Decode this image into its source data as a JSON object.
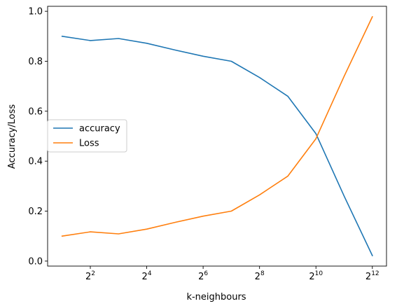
{
  "chart_data": {
    "type": "line",
    "title": "",
    "xlabel": "k-neighbours",
    "ylabel": "Accuracy/Loss",
    "x_scale": "log2",
    "x": [
      2,
      4,
      8,
      16,
      32,
      64,
      128,
      256,
      512,
      1024,
      2048,
      4096
    ],
    "xlim": [
      1.4,
      5800
    ],
    "ylim": [
      -0.02,
      1.02
    ],
    "x_ticks": [
      {
        "value": 4,
        "base": "2",
        "exp": "2"
      },
      {
        "value": 16,
        "base": "2",
        "exp": "4"
      },
      {
        "value": 64,
        "base": "2",
        "exp": "6"
      },
      {
        "value": 256,
        "base": "2",
        "exp": "8"
      },
      {
        "value": 1024,
        "base": "2",
        "exp": "10"
      },
      {
        "value": 4096,
        "base": "2",
        "exp": "12"
      }
    ],
    "y_ticks": [
      {
        "value": 0.0,
        "label": "0.0"
      },
      {
        "value": 0.2,
        "label": "0.2"
      },
      {
        "value": 0.4,
        "label": "0.4"
      },
      {
        "value": 0.6,
        "label": "0.6"
      },
      {
        "value": 0.8,
        "label": "0.8"
      },
      {
        "value": 1.0,
        "label": "1.0"
      }
    ],
    "grid": false,
    "legend_position": "center-left",
    "series": [
      {
        "name": "accuracy",
        "color": "#1f77b4",
        "values": [
          0.9,
          0.883,
          0.891,
          0.872,
          0.845,
          0.82,
          0.8,
          0.735,
          0.66,
          0.51,
          0.26,
          0.022
        ]
      },
      {
        "name": "Loss",
        "color": "#ff7f0e",
        "values": [
          0.1,
          0.117,
          0.109,
          0.128,
          0.155,
          0.18,
          0.2,
          0.265,
          0.34,
          0.49,
          0.74,
          0.978
        ]
      }
    ]
  }
}
